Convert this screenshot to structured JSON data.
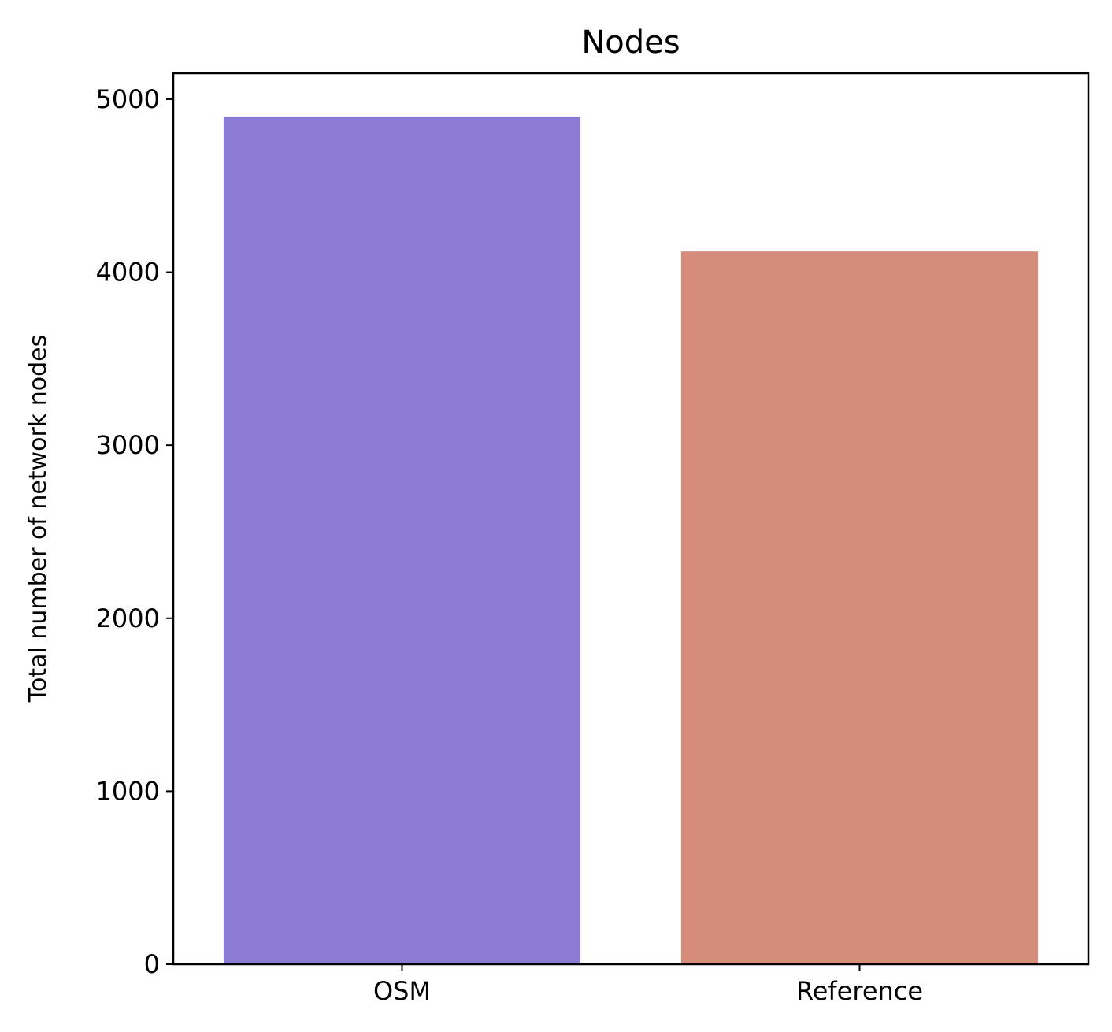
{
  "chart_data": {
    "type": "bar",
    "title": "Nodes",
    "xlabel": "",
    "ylabel": "Total number of network nodes",
    "categories": [
      "OSM",
      "Reference"
    ],
    "values": [
      4900,
      4120
    ],
    "colors": [
      "#8b7bd4",
      "#d68c7a"
    ],
    "ylim": [
      0,
      5150
    ],
    "yticks": [
      0,
      1000,
      2000,
      3000,
      4000,
      5000
    ],
    "grid": false,
    "legend": "none"
  }
}
